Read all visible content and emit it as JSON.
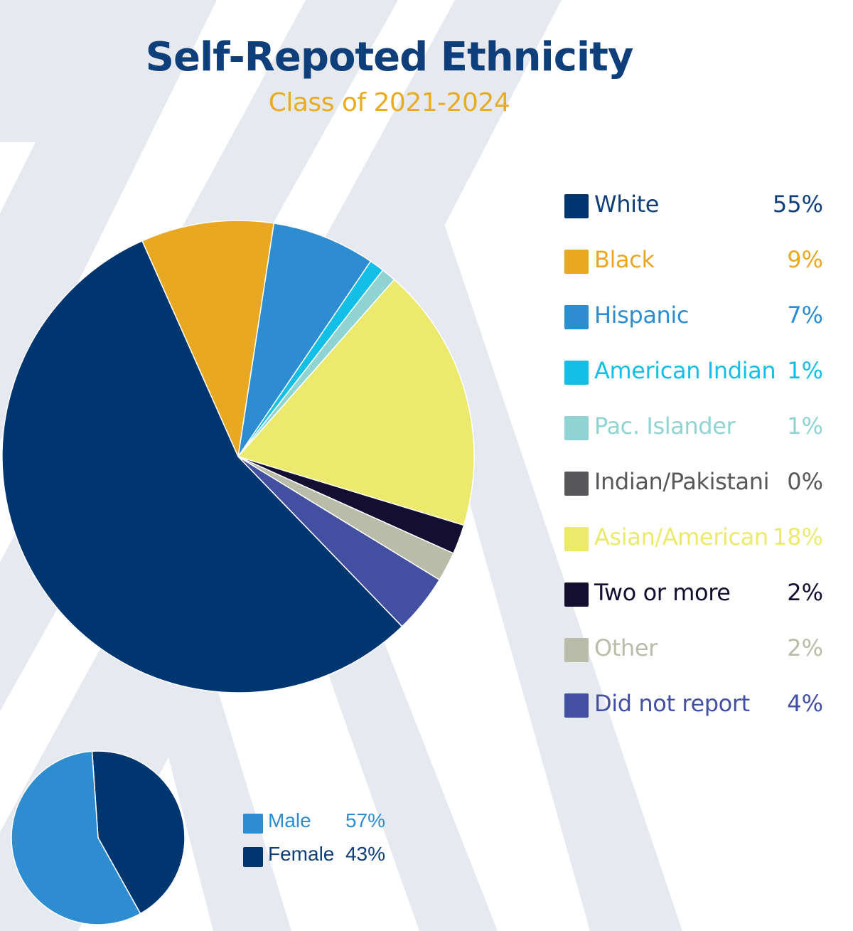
{
  "title": "Self-Repoted Ethnicity",
  "subtitle": "Class of 2021-2024",
  "colors": {
    "title": "#0f3f7a",
    "subtitle": "#e8ac22",
    "background_stripes": "#e6eaf0"
  },
  "chart_data": [
    {
      "type": "pie",
      "title": "Self-Repoted Ethnicity",
      "subtitle": "Class of 2021-2024",
      "legend_position": "right",
      "slices": [
        {
          "label": "White",
          "value": 55,
          "display": "55%",
          "color": "#003670",
          "text_color": "#0f3f7a"
        },
        {
          "label": "Black",
          "value": 9,
          "display": "9%",
          "color": "#e9a822",
          "text_color": "#e9a822"
        },
        {
          "label": "Hispanic",
          "value": 7,
          "display": "7%",
          "color": "#2e8dd1",
          "text_color": "#2e8dd1"
        },
        {
          "label": "American Indian",
          "value": 1,
          "display": "1%",
          "color": "#13bfe6",
          "text_color": "#13bfe6"
        },
        {
          "label": "Pac. Islander",
          "value": 1,
          "display": "1%",
          "color": "#8fd4d2",
          "text_color": "#8fd4d2"
        },
        {
          "label": "Indian/Pakistani",
          "value": 0,
          "display": "0%",
          "color": "#58585a",
          "text_color": "#58585a"
        },
        {
          "label": "Asian/American",
          "value": 18,
          "display": "18%",
          "color": "#ecea6c",
          "text_color": "#ecea6c"
        },
        {
          "label": "Two or more",
          "value": 2,
          "display": "2%",
          "color": "#140f30",
          "text_color": "#140f30"
        },
        {
          "label": "Other",
          "value": 2,
          "display": "2%",
          "color": "#b8bca8",
          "text_color": "#b8bca8"
        },
        {
          "label": "Did not report",
          "value": 4,
          "display": "4%",
          "color": "#4350a2",
          "text_color": "#4350a2"
        }
      ]
    },
    {
      "type": "pie",
      "legend_position": "right",
      "slices": [
        {
          "label": "Male",
          "value": 57,
          "display": "57%",
          "color": "#2e8dd1",
          "text_color": "#2e8dd1"
        },
        {
          "label": "Female",
          "value": 43,
          "display": "43%",
          "color": "#003670",
          "text_color": "#0f3f7a"
        }
      ]
    }
  ]
}
